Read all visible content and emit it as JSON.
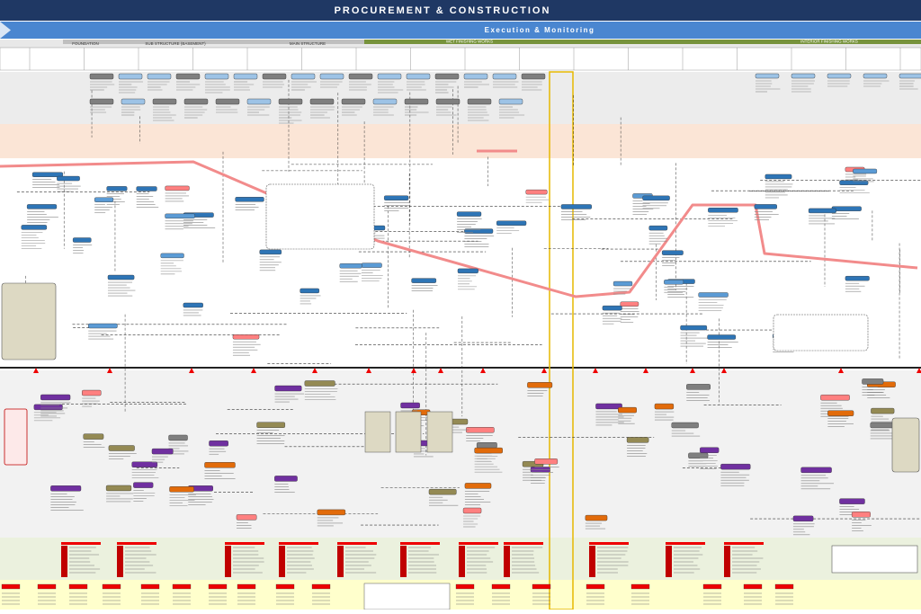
{
  "header": {
    "title": "PROCUREMENT & CONSTRUCTION",
    "subtitle": "Execution & Monitoring"
  },
  "phases": [
    "FOUNDATION",
    "SUB STRUCTURE (BASEMENT)",
    "MAIN STRUCTURE",
    "WET FINISHING WORKS",
    "INTERIOR FINISHING WORKS"
  ]
}
